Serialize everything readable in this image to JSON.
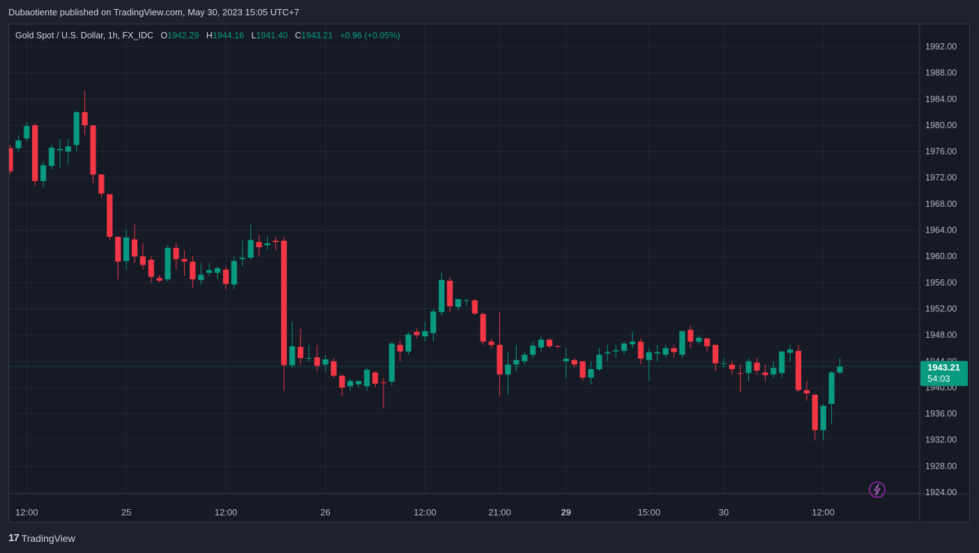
{
  "publisher_line": "Dubaotiente published on TradingView.com, May 30, 2023 15:05 UTC+7",
  "legend": {
    "symbol": "Gold Spot / U.S. Dollar, 1h, FX_IDC",
    "o_label": "O",
    "o_value": "1942.29",
    "h_label": "H",
    "h_value": "1944.16",
    "l_label": "L",
    "l_value": "1941.40",
    "c_label": "C",
    "c_value": "1943.21",
    "change": "+0.96 (+0.05%)"
  },
  "last_price": {
    "price": "1943.21",
    "countdown": "54:03"
  },
  "footer": {
    "brand": "TradingView"
  },
  "colors": {
    "up": "#089981",
    "down": "#f23645",
    "background": "#161a25",
    "grid": "#232733",
    "text": "#b2b5be"
  },
  "chart_data": {
    "type": "candlestick",
    "y_range": [
      1922.0,
      1994.0
    ],
    "y_ticks": [
      1992,
      1988,
      1984,
      1980,
      1976,
      1972,
      1968,
      1964,
      1960,
      1956,
      1952,
      1948,
      1944,
      1940,
      1936,
      1932,
      1928,
      1924
    ],
    "y_tick_labels": [
      "1992.00",
      "1988.00",
      "1984.00",
      "1980.00",
      "1976.00",
      "1972.00",
      "1968.00",
      "1964.00",
      "1960.00",
      "1956.00",
      "1952.00",
      "1948.00",
      "1944.00",
      "1940.00",
      "1936.00",
      "1932.00",
      "1928.00",
      "1924.00"
    ],
    "x_labels": [
      {
        "i": 2,
        "text": "12:00",
        "bold": false
      },
      {
        "i": 14,
        "text": "25",
        "bold": false
      },
      {
        "i": 26,
        "text": "12:00",
        "bold": false
      },
      {
        "i": 38,
        "text": "26",
        "bold": false
      },
      {
        "i": 50,
        "text": "12:00",
        "bold": false
      },
      {
        "i": 59,
        "text": "21:00",
        "bold": false
      },
      {
        "i": 67,
        "text": "29",
        "bold": true
      },
      {
        "i": 77,
        "text": "15:00",
        "bold": false
      },
      {
        "i": 86,
        "text": "30",
        "bold": false
      },
      {
        "i": 98,
        "text": "12:00",
        "bold": false
      }
    ],
    "candles": [
      [
        1976.5,
        1977.0,
        1972.5,
        1973.0
      ],
      [
        1976.5,
        1978.5,
        1976.0,
        1977.7
      ],
      [
        1978.0,
        1980.5,
        1977.5,
        1979.9
      ],
      [
        1980.0,
        1980.3,
        1970.8,
        1971.5
      ],
      [
        1971.5,
        1974.5,
        1970.5,
        1973.9
      ],
      [
        1973.8,
        1977.0,
        1973.3,
        1976.6
      ],
      [
        1976.2,
        1978.0,
        1973.5,
        1976.4
      ],
      [
        1976.0,
        1978.0,
        1974.0,
        1976.8
      ],
      [
        1977.0,
        1982.3,
        1976.0,
        1982.0
      ],
      [
        1982.0,
        1985.3,
        1978.5,
        1980.0
      ],
      [
        1980.0,
        1980.0,
        1971.2,
        1972.5
      ],
      [
        1972.5,
        1972.6,
        1969.0,
        1969.6
      ],
      [
        1969.5,
        1969.5,
        1962.5,
        1963.0
      ],
      [
        1963.0,
        1963.0,
        1956.5,
        1959.2
      ],
      [
        1959.3,
        1964.0,
        1958.0,
        1962.9
      ],
      [
        1962.6,
        1965.0,
        1959.0,
        1960.0
      ],
      [
        1960.0,
        1962.0,
        1958.0,
        1958.7
      ],
      [
        1959.5,
        1960.0,
        1956.0,
        1956.9
      ],
      [
        1956.7,
        1957.2,
        1956.0,
        1956.3
      ],
      [
        1956.5,
        1961.7,
        1956.2,
        1961.3
      ],
      [
        1961.3,
        1962.0,
        1958.0,
        1959.6
      ],
      [
        1959.6,
        1961.0,
        1957.0,
        1959.2
      ],
      [
        1959.2,
        1960.0,
        1955.2,
        1956.5
      ],
      [
        1956.4,
        1959.0,
        1955.7,
        1957.2
      ],
      [
        1957.5,
        1959.0,
        1957.0,
        1957.9
      ],
      [
        1957.5,
        1958.5,
        1956.5,
        1958.2
      ],
      [
        1958.0,
        1958.5,
        1955.0,
        1955.8
      ],
      [
        1955.7,
        1960.0,
        1955.0,
        1959.3
      ],
      [
        1959.6,
        1962.5,
        1958.5,
        1959.8
      ],
      [
        1959.8,
        1964.8,
        1959.5,
        1962.5
      ],
      [
        1962.2,
        1963.3,
        1960.0,
        1961.4
      ],
      [
        1961.7,
        1963.0,
        1961.0,
        1962.0
      ],
      [
        1962.4,
        1963.0,
        1961.0,
        1962.2
      ],
      [
        1962.4,
        1963.0,
        1939.5,
        1943.4
      ],
      [
        1943.4,
        1950.0,
        1943.0,
        1946.3
      ],
      [
        1946.2,
        1949.0,
        1943.5,
        1944.5
      ],
      [
        1944.5,
        1946.5,
        1944.0,
        1944.5
      ],
      [
        1944.6,
        1946.5,
        1942.5,
        1943.3
      ],
      [
        1943.5,
        1945.0,
        1942.5,
        1944.3
      ],
      [
        1944.0,
        1944.5,
        1941.5,
        1941.8
      ],
      [
        1941.8,
        1942.0,
        1938.7,
        1940.0
      ],
      [
        1940.2,
        1941.3,
        1939.5,
        1941.0
      ],
      [
        1940.5,
        1941.0,
        1940.0,
        1941.0
      ],
      [
        1940.2,
        1943.0,
        1939.5,
        1942.7
      ],
      [
        1942.3,
        1942.5,
        1940.0,
        1940.6
      ],
      [
        1940.8,
        1941.5,
        1936.8,
        1940.7
      ],
      [
        1940.9,
        1947.0,
        1940.3,
        1946.7
      ],
      [
        1946.5,
        1947.2,
        1944.0,
        1945.5
      ],
      [
        1945.5,
        1948.5,
        1945.0,
        1948.1
      ],
      [
        1948.5,
        1949.0,
        1947.5,
        1948.0
      ],
      [
        1947.8,
        1950.0,
        1947.0,
        1948.6
      ],
      [
        1948.3,
        1952.0,
        1947.0,
        1951.6
      ],
      [
        1951.5,
        1957.5,
        1951.0,
        1956.4
      ],
      [
        1956.3,
        1956.8,
        1951.5,
        1952.4
      ],
      [
        1952.3,
        1953.5,
        1951.8,
        1953.5
      ],
      [
        1953.2,
        1953.5,
        1952.5,
        1953.3
      ],
      [
        1953.3,
        1953.5,
        1951.0,
        1951.3
      ],
      [
        1951.2,
        1951.5,
        1946.5,
        1947.0
      ],
      [
        1947.0,
        1947.5,
        1946.0,
        1946.5
      ],
      [
        1946.5,
        1951.5,
        1938.7,
        1942.0
      ],
      [
        1942.0,
        1945.5,
        1939.0,
        1943.5
      ],
      [
        1943.5,
        1946.5,
        1942.5,
        1944.2
      ],
      [
        1944.0,
        1945.5,
        1943.5,
        1945.0
      ],
      [
        1945.0,
        1947.0,
        1944.5,
        1946.4
      ],
      [
        1946.1,
        1947.8,
        1945.5,
        1947.3
      ],
      [
        1947.3,
        1947.5,
        1946.0,
        1946.3
      ],
      [
        1946.3,
        1946.5,
        1946.0,
        1946.2
      ],
      [
        1944.0,
        1946.0,
        1941.5,
        1944.4
      ],
      [
        1944.2,
        1944.5,
        1943.0,
        1943.5
      ],
      [
        1944.0,
        1944.0,
        1941.0,
        1941.5
      ],
      [
        1941.5,
        1944.0,
        1940.5,
        1942.8
      ],
      [
        1942.8,
        1946.0,
        1942.5,
        1945.0
      ],
      [
        1945.2,
        1946.5,
        1944.0,
        1945.4
      ],
      [
        1945.5,
        1946.5,
        1944.5,
        1945.7
      ],
      [
        1945.6,
        1947.0,
        1945.0,
        1946.7
      ],
      [
        1946.6,
        1948.5,
        1946.0,
        1947.0
      ],
      [
        1947.0,
        1947.5,
        1943.5,
        1944.4
      ],
      [
        1944.2,
        1946.0,
        1941.0,
        1945.4
      ],
      [
        1945.2,
        1946.5,
        1944.0,
        1945.4
      ],
      [
        1945.0,
        1946.5,
        1944.5,
        1946.0
      ],
      [
        1946.0,
        1946.5,
        1944.5,
        1945.4
      ],
      [
        1945.0,
        1948.0,
        1944.5,
        1948.6
      ],
      [
        1948.8,
        1949.5,
        1946.0,
        1947.0
      ],
      [
        1947.0,
        1948.0,
        1946.5,
        1947.6
      ],
      [
        1947.5,
        1947.5,
        1945.5,
        1946.3
      ],
      [
        1946.5,
        1946.5,
        1942.5,
        1943.7
      ],
      [
        1943.6,
        1944.5,
        1943.0,
        1943.7
      ],
      [
        1943.5,
        1944.0,
        1942.0,
        1942.8
      ],
      [
        1942.2,
        1943.5,
        1939.3,
        1942.1
      ],
      [
        1942.2,
        1944.5,
        1941.0,
        1944.0
      ],
      [
        1943.8,
        1944.5,
        1942.0,
        1942.6
      ],
      [
        1942.3,
        1943.5,
        1941.0,
        1941.9
      ],
      [
        1942.0,
        1944.0,
        1941.5,
        1943.0
      ],
      [
        1942.2,
        1945.5,
        1941.5,
        1945.5
      ],
      [
        1945.3,
        1946.5,
        1944.0,
        1945.8
      ],
      [
        1945.6,
        1946.5,
        1939.3,
        1939.6
      ],
      [
        1939.6,
        1941.0,
        1938.0,
        1939.1
      ],
      [
        1938.9,
        1939.0,
        1932.0,
        1933.5
      ],
      [
        1933.5,
        1937.5,
        1932.0,
        1937.2
      ],
      [
        1937.5,
        1942.5,
        1934.5,
        1942.3
      ],
      [
        1942.3,
        1944.5,
        1942.0,
        1943.2
      ]
    ]
  }
}
